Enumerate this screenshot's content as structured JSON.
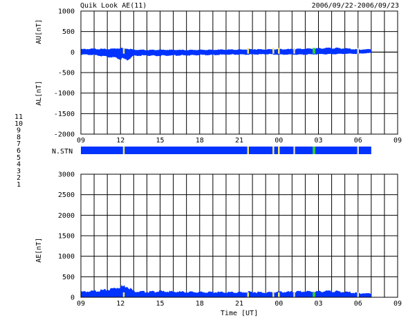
{
  "header": {
    "title": "Quik Look AE(11)",
    "date_range": "2006/09/22-2006/09/23"
  },
  "legend": {
    "title": "N.STN",
    "items": [
      {
        "label": "11",
        "color": "#00c8ff"
      },
      {
        "label": "10",
        "color": "#ff00ff"
      },
      {
        "label": "9",
        "color": "#0000ff"
      },
      {
        "label": "8",
        "color": "#f2f2a0"
      },
      {
        "label": "7",
        "color": "#7ddc7d"
      },
      {
        "label": "6",
        "color": "#ff0000"
      },
      {
        "label": "5",
        "color": "#d0d0d0"
      },
      {
        "label": "4",
        "color": "#c8c8c8"
      },
      {
        "label": "3",
        "color": "#00b0b0"
      },
      {
        "label": "2",
        "color": "#a000a0"
      },
      {
        "label": "1",
        "color": "#1818a0"
      }
    ]
  },
  "colors": {
    "fill": "#0033ff",
    "stn_main": "#0033ff",
    "yellow": "#f5e76a",
    "green": "#33cc33",
    "grid": "#000000"
  },
  "chart_data": [
    {
      "type": "area",
      "name": "AU/AL panel",
      "ylabel_top": "AU[nT]",
      "ylabel_bottom": "AL[nT]",
      "ylim": [
        -2000,
        1000
      ],
      "yticks": [
        -2000,
        -1500,
        -1000,
        -500,
        0,
        500,
        1000
      ],
      "xlim": [
        "2006-09-22 09:00",
        "2006-09-23 09:00"
      ],
      "xticks": [
        "09",
        "12",
        "15",
        "18",
        "21",
        "00",
        "03",
        "06",
        "09"
      ],
      "data_end": "2006-09-23 07:00",
      "x": [
        "09:00",
        "10:00",
        "11:00",
        "12:00",
        "12:30",
        "13:00",
        "14:00",
        "15:00",
        "16:00",
        "17:00",
        "18:00",
        "19:00",
        "20:00",
        "21:00",
        "22:00",
        "23:00",
        "00:00",
        "01:00",
        "02:00",
        "03:00",
        "04:00",
        "05:00",
        "06:00",
        "07:00"
      ],
      "au": [
        70,
        80,
        70,
        100,
        90,
        60,
        50,
        55,
        55,
        50,
        55,
        55,
        60,
        60,
        70,
        65,
        70,
        70,
        80,
        90,
        100,
        90,
        60,
        70
      ],
      "al": [
        -60,
        -70,
        -110,
        -160,
        -190,
        -90,
        -80,
        -90,
        -80,
        -80,
        -70,
        -70,
        -60,
        -60,
        -60,
        -50,
        -60,
        -60,
        -60,
        -50,
        -50,
        -40,
        -40,
        -20
      ]
    },
    {
      "type": "heatmap",
      "name": "station count",
      "label": "N.STN",
      "background_value": 9,
      "events": [
        {
          "time": "12:15",
          "value": 8
        },
        {
          "time": "21:40",
          "value": 8
        },
        {
          "time": "23:35",
          "value": 8
        },
        {
          "time": "00:00",
          "value": 8
        },
        {
          "time": "01:10",
          "value": 5
        },
        {
          "time": "02:40",
          "value": 7
        },
        {
          "time": "06:00",
          "value": 5
        }
      ]
    },
    {
      "type": "area",
      "name": "AE panel",
      "ylabel": "AE[nT]",
      "xlabel": "Time [UT]",
      "ylim": [
        0,
        3000
      ],
      "yticks": [
        0,
        500,
        1000,
        1500,
        2000,
        2500,
        3000
      ],
      "xlim": [
        "2006-09-22 09:00",
        "2006-09-23 09:00"
      ],
      "xticks": [
        "09",
        "12",
        "15",
        "18",
        "21",
        "00",
        "03",
        "06",
        "09"
      ],
      "data_end": "2006-09-23 07:00",
      "x": [
        "09:00",
        "10:00",
        "11:00",
        "12:00",
        "12:30",
        "13:00",
        "14:00",
        "15:00",
        "16:00",
        "17:00",
        "18:00",
        "19:00",
        "20:00",
        "21:00",
        "22:00",
        "23:00",
        "00:00",
        "01:00",
        "02:00",
        "03:00",
        "04:00",
        "05:00",
        "06:00",
        "07:00"
      ],
      "ae": [
        130,
        150,
        180,
        260,
        280,
        150,
        130,
        145,
        135,
        130,
        125,
        125,
        120,
        120,
        130,
        115,
        130,
        130,
        140,
        140,
        150,
        130,
        100,
        90
      ]
    }
  ]
}
